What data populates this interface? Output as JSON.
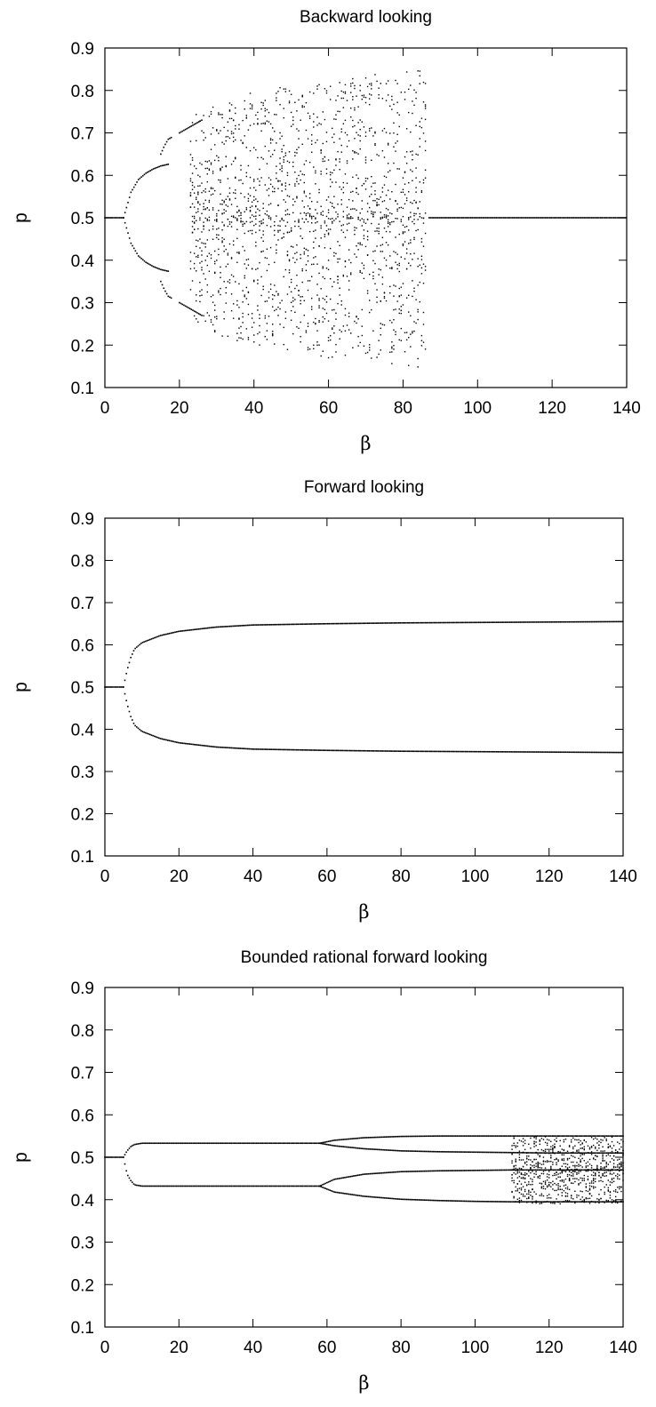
{
  "chart_data": [
    {
      "type": "scatter",
      "title": "Backward looking",
      "xlabel": "β",
      "ylabel": "p",
      "xlim": [
        0,
        140
      ],
      "ylim": [
        0.1,
        0.9
      ],
      "x_ticks": [
        0,
        20,
        40,
        60,
        80,
        100,
        120,
        140
      ],
      "y_ticks": [
        0.1,
        0.2,
        0.3,
        0.4,
        0.5,
        0.6,
        0.7,
        0.8,
        0.9
      ],
      "grid": false,
      "point_color": "#000000",
      "branches": [
        {
          "x": [
            0,
            5
          ],
          "values": [
            0.5,
            0.5
          ]
        },
        {
          "x": [
            5,
            7,
            9,
            11,
            13,
            15,
            17
          ],
          "values": [
            0.5,
            0.56,
            0.59,
            0.605,
            0.615,
            0.622,
            0.626
          ]
        },
        {
          "x": [
            5,
            7,
            9,
            11,
            13,
            15,
            17
          ],
          "values": [
            0.5,
            0.44,
            0.41,
            0.395,
            0.385,
            0.378,
            0.374
          ]
        },
        {
          "x": [
            15,
            16,
            17,
            18
          ],
          "values": [
            0.65,
            0.67,
            0.685,
            0.69
          ]
        },
        {
          "x": [
            15,
            16,
            17,
            18
          ],
          "values": [
            0.35,
            0.33,
            0.315,
            0.31
          ]
        },
        {
          "x": [
            20,
            22,
            24,
            26
          ],
          "values": [
            0.3,
            0.29,
            0.28,
            0.27
          ]
        },
        {
          "x": [
            20,
            22,
            24,
            26
          ],
          "values": [
            0.7,
            0.71,
            0.72,
            0.73
          ]
        },
        {
          "x": [
            87,
            100,
            120,
            140
          ],
          "values": [
            0.5,
            0.5,
            0.5,
            0.5
          ]
        }
      ],
      "chaotic_band": {
        "x": [
          23,
          30,
          40,
          50,
          60,
          70,
          80,
          86
        ],
        "lower": [
          0.26,
          0.22,
          0.2,
          0.185,
          0.17,
          0.165,
          0.15,
          0.145
        ],
        "upper": [
          0.74,
          0.77,
          0.8,
          0.81,
          0.825,
          0.835,
          0.845,
          0.85
        ]
      }
    },
    {
      "type": "scatter",
      "title": "Forward looking",
      "xlabel": "β",
      "ylabel": "p",
      "xlim": [
        0,
        140
      ],
      "ylim": [
        0.1,
        0.9
      ],
      "x_ticks": [
        0,
        20,
        40,
        60,
        80,
        100,
        120,
        140
      ],
      "y_ticks": [
        0.1,
        0.2,
        0.3,
        0.4,
        0.5,
        0.6,
        0.7,
        0.8,
        0.9
      ],
      "grid": false,
      "point_color": "#000000",
      "branches": [
        {
          "x": [
            0,
            5
          ],
          "values": [
            0.5,
            0.5
          ]
        },
        {
          "x": [
            5,
            6,
            7,
            8,
            10,
            15,
            20,
            30,
            40,
            60,
            80,
            100,
            120,
            140
          ],
          "values": [
            0.5,
            0.54,
            0.57,
            0.59,
            0.605,
            0.622,
            0.632,
            0.642,
            0.647,
            0.65,
            0.652,
            0.653,
            0.654,
            0.655
          ]
        },
        {
          "x": [
            5,
            6,
            7,
            8,
            10,
            15,
            20,
            30,
            40,
            60,
            80,
            100,
            120,
            140
          ],
          "values": [
            0.5,
            0.46,
            0.43,
            0.41,
            0.395,
            0.378,
            0.368,
            0.358,
            0.353,
            0.35,
            0.348,
            0.347,
            0.346,
            0.345
          ]
        }
      ]
    },
    {
      "type": "scatter",
      "title": "Bounded rational forward looking",
      "xlabel": "β",
      "ylabel": "p",
      "xlim": [
        0,
        140
      ],
      "ylim": [
        0.1,
        0.9
      ],
      "x_ticks": [
        0,
        20,
        40,
        60,
        80,
        100,
        120,
        140
      ],
      "y_ticks": [
        0.1,
        0.2,
        0.3,
        0.4,
        0.5,
        0.6,
        0.7,
        0.8,
        0.9
      ],
      "grid": false,
      "point_color": "#000000",
      "branches": [
        {
          "x": [
            0,
            5
          ],
          "values": [
            0.5,
            0.5
          ]
        },
        {
          "x": [
            5,
            6,
            7,
            8,
            10,
            20,
            40,
            58
          ],
          "values": [
            0.5,
            0.515,
            0.525,
            0.53,
            0.533,
            0.533,
            0.533,
            0.533
          ]
        },
        {
          "x": [
            5,
            6,
            7,
            8,
            10,
            20,
            40,
            58
          ],
          "values": [
            0.5,
            0.46,
            0.445,
            0.435,
            0.432,
            0.432,
            0.432,
            0.432
          ]
        },
        {
          "x": [
            58,
            62,
            70,
            80,
            90,
            100,
            110,
            120,
            130,
            140
          ],
          "values": [
            0.533,
            0.54,
            0.546,
            0.549,
            0.55,
            0.55,
            0.55,
            0.55,
            0.55,
            0.55
          ]
        },
        {
          "x": [
            58,
            62,
            70,
            80,
            90,
            100,
            110,
            120,
            130,
            140
          ],
          "values": [
            0.533,
            0.527,
            0.52,
            0.515,
            0.513,
            0.512,
            0.511,
            0.51,
            0.51,
            0.51
          ]
        },
        {
          "x": [
            58,
            62,
            70,
            80,
            90,
            100,
            110,
            120,
            130,
            140
          ],
          "values": [
            0.432,
            0.448,
            0.46,
            0.466,
            0.468,
            0.469,
            0.47,
            0.47,
            0.47,
            0.47
          ]
        },
        {
          "x": [
            58,
            62,
            70,
            80,
            90,
            100,
            110,
            120,
            130,
            140
          ],
          "values": [
            0.432,
            0.418,
            0.408,
            0.401,
            0.398,
            0.396,
            0.395,
            0.395,
            0.395,
            0.395
          ]
        }
      ],
      "chaotic_band": {
        "x": [
          110,
          120,
          130,
          140
        ],
        "lower": [
          0.39,
          0.39,
          0.39,
          0.39
        ],
        "upper": [
          0.55,
          0.55,
          0.55,
          0.55
        ]
      }
    }
  ]
}
